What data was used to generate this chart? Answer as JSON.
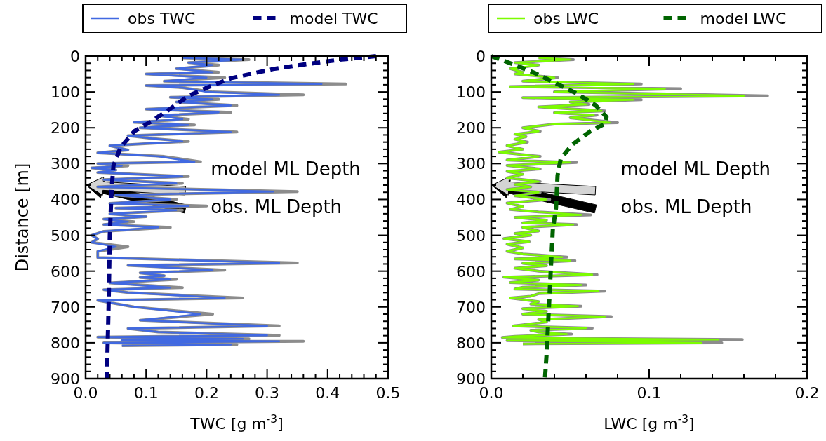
{
  "chart_data": [
    {
      "type": "line",
      "xlabel": "TWC [g m$^{-3}$]",
      "ylabel": "Distance [m]",
      "legend": "top",
      "xlim": [
        0,
        0.5
      ],
      "ylim": [
        900,
        0
      ],
      "xticks": [
        {
          "value": 0,
          "label": "0.0"
        },
        {
          "value": 0.02,
          "label": null
        },
        {
          "value": 0.04,
          "label": null
        },
        {
          "value": 0.06,
          "label": null
        },
        {
          "value": 0.08,
          "label": null
        },
        {
          "value": 0.1,
          "label": "0.1"
        },
        {
          "value": 0.12,
          "label": null
        },
        {
          "value": 0.14,
          "label": null
        },
        {
          "value": 0.16,
          "label": null
        },
        {
          "value": 0.18,
          "label": null
        },
        {
          "value": 0.2,
          "label": "0.2"
        },
        {
          "value": 0.22,
          "label": null
        },
        {
          "value": 0.24,
          "label": null
        },
        {
          "value": 0.26,
          "label": null
        },
        {
          "value": 0.28,
          "label": null
        },
        {
          "value": 0.3,
          "label": "0.3"
        },
        {
          "value": 0.32,
          "label": null
        },
        {
          "value": 0.34,
          "label": null
        },
        {
          "value": 0.36,
          "label": null
        },
        {
          "value": 0.38,
          "label": null
        },
        {
          "value": 0.4,
          "label": "0.4"
        },
        {
          "value": 0.42,
          "label": null
        },
        {
          "value": 0.44,
          "label": null
        },
        {
          "value": 0.46,
          "label": null
        },
        {
          "value": 0.48,
          "label": null
        },
        {
          "value": 0.5,
          "label": "0.5"
        }
      ],
      "yticks": [
        0,
        {
          "value": 20,
          "label": null
        },
        {
          "value": 40,
          "label": null
        },
        {
          "value": 60,
          "label": null
        },
        {
          "value": 80,
          "label": null
        },
        100,
        {
          "value": 120,
          "label": null
        },
        {
          "value": 140,
          "label": null
        },
        {
          "value": 160,
          "label": null
        },
        {
          "value": 180,
          "label": null
        },
        200,
        {
          "value": 220,
          "label": null
        },
        {
          "value": 240,
          "label": null
        },
        {
          "value": 260,
          "label": null
        },
        {
          "value": 280,
          "label": null
        },
        300,
        {
          "value": 320,
          "label": null
        },
        {
          "value": 340,
          "label": null
        },
        {
          "value": 360,
          "label": null
        },
        {
          "value": 380,
          "label": null
        },
        400,
        {
          "value": 420,
          "label": null
        },
        {
          "value": 440,
          "label": null
        },
        {
          "value": 460,
          "label": null
        },
        {
          "value": 480,
          "label": null
        },
        500,
        {
          "value": 520,
          "label": null
        },
        {
          "value": 540,
          "label": null
        },
        {
          "value": 560,
          "label": null
        },
        {
          "value": 580,
          "label": null
        },
        600,
        {
          "value": 620,
          "label": null
        },
        {
          "value": 640,
          "label": null
        },
        {
          "value": 660,
          "label": null
        },
        {
          "value": 680,
          "label": null
        },
        700,
        {
          "value": 720,
          "label": null
        },
        {
          "value": 740,
          "label": null
        },
        {
          "value": 760,
          "label": null
        },
        {
          "value": 780,
          "label": null
        },
        800,
        {
          "value": 820,
          "label": null
        },
        {
          "value": 840,
          "label": null
        },
        {
          "value": 860,
          "label": null
        },
        {
          "value": 880,
          "label": null
        },
        900
      ],
      "series": [
        {
          "color": "#8c8c8c",
          "line_style": "solid",
          "values": [
            5,
            10,
            18,
            25,
            35,
            45,
            50,
            60,
            70,
            78,
            82,
            88,
            100,
            108,
            115,
            121,
            128,
            138,
            148,
            157,
            166,
            176,
            185,
            192,
            200,
            212,
            222,
            230,
            238,
            250,
            262,
            270,
            280,
            295,
            300,
            306,
            312,
            318,
            325,
            336,
            345,
            355,
            365,
            378,
            388,
            400,
            411,
            418,
            424,
            430,
            440,
            448,
            455,
            462,
            470,
            478,
            489,
            500,
            510,
            520,
            532,
            545,
            562,
            577,
            584,
            597,
            605,
            613,
            618,
            623,
            633,
            646,
            652,
            660,
            675,
            682,
            700,
            720,
            737,
            753,
            760,
            770,
            779,
            784,
            789,
            793,
            796,
            800,
            805,
            808
          ],
          "x": [
            0.16,
            0.27,
            0.17,
            0.22,
            0.15,
            0.22,
            0.1,
            0.23,
            0.13,
            0.43,
            0.1,
            0.16,
            0.21,
            0.36,
            0.14,
            0.22,
            0.15,
            0.25,
            0.1,
            0.24,
            0.12,
            0.17,
            0.08,
            0.18,
            0.09,
            0.25,
            0.07,
            0.11,
            0.17,
            0.04,
            0.07,
            0.02,
            0.13,
            0.19,
            0.02,
            0.07,
            0.01,
            0.05,
            0.02,
            0.17,
            0.03,
            0.16,
            0.02,
            0.35,
            0.05,
            0.15,
            0.04,
            0.2,
            0.05,
            0.16,
            0.04,
            0.1,
            0.03,
            0.08,
            0.03,
            0.14,
            0.03,
            0.01,
            0.02,
            0.01,
            0.07,
            0.02,
            0.02,
            0.35,
            0.07,
            0.23,
            0.09,
            0.13,
            0.09,
            0.15,
            0.04,
            0.16,
            0.03,
            0.07,
            0.26,
            0.02,
            0.08,
            0.21,
            0.09,
            0.32,
            0.07,
            0.12,
            0.32,
            0.02,
            0.27,
            0.06,
            0.36,
            0.03,
            0.25,
            0.06
          ]
        },
        {
          "name": "obs TWC",
          "color": "#4169e1",
          "line_style": "solid",
          "values": [
            5,
            10,
            18,
            25,
            35,
            45,
            50,
            60,
            70,
            78,
            82,
            88,
            100,
            108,
            115,
            121,
            128,
            138,
            148,
            157,
            166,
            176,
            185,
            192,
            200,
            212,
            222,
            230,
            238,
            250,
            262,
            270,
            280,
            295,
            300,
            306,
            312,
            318,
            325,
            336,
            345,
            355,
            365,
            378,
            388,
            400,
            411,
            418,
            424,
            430,
            440,
            448,
            455,
            462,
            470,
            478,
            489,
            500,
            510,
            520,
            532,
            545,
            562,
            577,
            584,
            597,
            605,
            613,
            618,
            623,
            633,
            646,
            652,
            660,
            675,
            682,
            700,
            720,
            737,
            753,
            760,
            770,
            779,
            784,
            789,
            793,
            796,
            800,
            805,
            808
          ],
          "x": [
            0.16,
            0.26,
            0.17,
            0.21,
            0.15,
            0.21,
            0.1,
            0.2,
            0.13,
            0.39,
            0.1,
            0.16,
            0.2,
            0.32,
            0.14,
            0.21,
            0.15,
            0.24,
            0.1,
            0.22,
            0.12,
            0.16,
            0.08,
            0.17,
            0.09,
            0.24,
            0.07,
            0.11,
            0.16,
            0.04,
            0.07,
            0.02,
            0.12,
            0.18,
            0.02,
            0.06,
            0.01,
            0.05,
            0.02,
            0.16,
            0.03,
            0.15,
            0.02,
            0.31,
            0.05,
            0.14,
            0.04,
            0.17,
            0.05,
            0.15,
            0.04,
            0.1,
            0.03,
            0.07,
            0.03,
            0.12,
            0.03,
            0.01,
            0.02,
            0.01,
            0.05,
            0.02,
            0.02,
            0.32,
            0.07,
            0.21,
            0.09,
            0.13,
            0.09,
            0.14,
            0.04,
            0.14,
            0.03,
            0.07,
            0.23,
            0.02,
            0.08,
            0.19,
            0.09,
            0.3,
            0.07,
            0.12,
            0.3,
            0.02,
            0.26,
            0.06,
            0.32,
            0.03,
            0.24,
            0.06
          ]
        },
        {
          "name": "model TWC",
          "color": "#000080",
          "line_style": "dashed",
          "values": [
            0,
            5,
            10,
            26,
            36,
            62,
            85,
            111,
            147,
            183,
            209,
            254,
            306,
            372,
            500,
            700,
            900
          ],
          "x": [
            0.48,
            0.45,
            0.42,
            0.35,
            0.31,
            0.24,
            0.205,
            0.17,
            0.14,
            0.108,
            0.081,
            0.058,
            0.046,
            0.043,
            0.04,
            0.038,
            0.035
          ]
        }
      ],
      "annotations": [
        "model ML Depth",
        "obs. ML Depth"
      ]
    },
    {
      "type": "line",
      "xlabel": "LWC [g m$^{-3}$]",
      "legend": "top",
      "xlim": [
        0,
        0.2
      ],
      "ylim": [
        900,
        0
      ],
      "xticks": [
        {
          "value": 0,
          "label": "0.0"
        },
        {
          "value": 0.02,
          "label": null
        },
        {
          "value": 0.04,
          "label": null
        },
        {
          "value": 0.06,
          "label": null
        },
        {
          "value": 0.08,
          "label": null
        },
        {
          "value": 0.1,
          "label": "0.1"
        },
        {
          "value": 0.12,
          "label": null
        },
        {
          "value": 0.14,
          "label": null
        },
        {
          "value": 0.16,
          "label": null
        },
        {
          "value": 0.18,
          "label": null
        },
        {
          "value": 0.2,
          "label": "0.2"
        }
      ],
      "yticks": [
        0,
        {
          "value": 20,
          "label": null
        },
        {
          "value": 40,
          "label": null
        },
        {
          "value": 60,
          "label": null
        },
        {
          "value": 80,
          "label": null
        },
        100,
        {
          "value": 120,
          "label": null
        },
        {
          "value": 140,
          "label": null
        },
        {
          "value": 160,
          "label": null
        },
        {
          "value": 180,
          "label": null
        },
        200,
        {
          "value": 220,
          "label": null
        },
        {
          "value": 240,
          "label": null
        },
        {
          "value": 260,
          "label": null
        },
        {
          "value": 280,
          "label": null
        },
        300,
        {
          "value": 320,
          "label": null
        },
        {
          "value": 340,
          "label": null
        },
        {
          "value": 360,
          "label": null
        },
        {
          "value": 380,
          "label": null
        },
        400,
        {
          "value": 420,
          "label": null
        },
        {
          "value": 440,
          "label": null
        },
        {
          "value": 460,
          "label": null
        },
        {
          "value": 480,
          "label": null
        },
        500,
        {
          "value": 520,
          "label": null
        },
        {
          "value": 540,
          "label": null
        },
        {
          "value": 560,
          "label": null
        },
        {
          "value": 580,
          "label": null
        },
        600,
        {
          "value": 620,
          "label": null
        },
        {
          "value": 640,
          "label": null
        },
        {
          "value": 660,
          "label": null
        },
        {
          "value": 680,
          "label": null
        },
        700,
        {
          "value": 720,
          "label": null
        },
        {
          "value": 740,
          "label": null
        },
        {
          "value": 760,
          "label": null
        },
        {
          "value": 780,
          "label": null
        },
        800,
        {
          "value": 820,
          "label": null
        },
        {
          "value": 840,
          "label": null
        },
        {
          "value": 860,
          "label": null
        },
        {
          "value": 880,
          "label": null
        },
        900
      ],
      "series": [
        {
          "color": "#8c8c8c",
          "line_style": "solid",
          "values": [
            5,
            10,
            18,
            25,
            35,
            45,
            50,
            60,
            70,
            78,
            85,
            91,
            100,
            111,
            116,
            122,
            128,
            135,
            142,
            153,
            158,
            165,
            172,
            186,
            190,
            200,
            210,
            218,
            225,
            232,
            240,
            250,
            260,
            268,
            280,
            290,
            297,
            305,
            315,
            322,
            330,
            340,
            350,
            358,
            365,
            372,
            380,
            390,
            400,
            410,
            420,
            428,
            435,
            443,
            450,
            458,
            465,
            470,
            478,
            488,
            495,
            500,
            509,
            518,
            525,
            535,
            545,
            552,
            561,
            566,
            571,
            578,
            585,
            592,
            600,
            610,
            617,
            625,
            632,
            639,
            645,
            650,
            656,
            663,
            670,
            675,
            685,
            692,
            698,
            705,
            712,
            720,
            727,
            735,
            742,
            753,
            759,
            765,
            770,
            776,
            782,
            785,
            788,
            791,
            794,
            796,
            800,
            803
          ],
          "x": [
            0.03,
            0.052,
            0.015,
            0.03,
            0.012,
            0.02,
            0.015,
            0.042,
            0.02,
            0.095,
            0.012,
            0.12,
            0.04,
            0.175,
            0.02,
            0.095,
            0.05,
            0.062,
            0.03,
            0.072,
            0.04,
            0.067,
            0.05,
            0.08,
            0.04,
            0.02,
            0.031,
            0.015,
            0.022,
            0.015,
            0.023,
            0.01,
            0.02,
            0.005,
            0.031,
            0.01,
            0.054,
            0.01,
            0.031,
            0.01,
            0.02,
            0.01,
            0.031,
            0.015,
            0.025,
            0.01,
            0.031,
            0.015,
            0.037,
            0.01,
            0.02,
            0.012,
            0.03,
            0.063,
            0.015,
            0.035,
            0.02,
            0.054,
            0.02,
            0.03,
            0.015,
            0.025,
            0.008,
            0.024,
            0.01,
            0.02,
            0.01,
            0.02,
            0.048,
            0.015,
            0.053,
            0.02,
            0.035,
            0.015,
            0.03,
            0.067,
            0.008,
            0.03,
            0.012,
            0.06,
            0.02,
            0.015,
            0.072,
            0.03,
            0.025,
            0.012,
            0.03,
            0.025,
            0.057,
            0.02,
            0.035,
            0.02,
            0.076,
            0.03,
            0.035,
            0.014,
            0.064,
            0.025,
            0.03,
            0.051,
            0.015,
            0.007,
            0.06,
            0.159,
            0.01,
            0.05,
            0.146,
            0.02
          ]
        },
        {
          "name": "obs LWC",
          "color": "#7cfc00",
          "line_style": "solid",
          "values": [
            5,
            10,
            18,
            25,
            35,
            45,
            50,
            60,
            70,
            78,
            85,
            91,
            100,
            111,
            116,
            122,
            128,
            135,
            142,
            153,
            158,
            165,
            172,
            186,
            190,
            200,
            210,
            218,
            225,
            232,
            240,
            250,
            260,
            268,
            280,
            290,
            297,
            305,
            315,
            322,
            330,
            340,
            350,
            358,
            365,
            372,
            380,
            390,
            400,
            410,
            420,
            428,
            435,
            443,
            450,
            458,
            465,
            470,
            478,
            488,
            495,
            500,
            509,
            518,
            525,
            535,
            545,
            552,
            561,
            566,
            571,
            578,
            585,
            592,
            600,
            610,
            617,
            625,
            632,
            639,
            645,
            650,
            656,
            663,
            670,
            675,
            685,
            692,
            698,
            705,
            712,
            720,
            727,
            735,
            742,
            753,
            759,
            765,
            770,
            776,
            782,
            785,
            788,
            791,
            794,
            796,
            800,
            803
          ],
          "x": [
            0.03,
            0.05,
            0.015,
            0.03,
            0.012,
            0.02,
            0.015,
            0.04,
            0.02,
            0.09,
            0.012,
            0.11,
            0.04,
            0.16,
            0.02,
            0.09,
            0.05,
            0.06,
            0.03,
            0.07,
            0.04,
            0.065,
            0.05,
            0.075,
            0.04,
            0.02,
            0.03,
            0.015,
            0.022,
            0.015,
            0.022,
            0.01,
            0.02,
            0.005,
            0.03,
            0.01,
            0.05,
            0.01,
            0.03,
            0.01,
            0.02,
            0.01,
            0.03,
            0.015,
            0.025,
            0.01,
            0.03,
            0.015,
            0.035,
            0.01,
            0.02,
            0.012,
            0.03,
            0.057,
            0.015,
            0.035,
            0.02,
            0.052,
            0.02,
            0.03,
            0.015,
            0.025,
            0.008,
            0.024,
            0.01,
            0.02,
            0.01,
            0.02,
            0.045,
            0.015,
            0.05,
            0.02,
            0.035,
            0.015,
            0.03,
            0.064,
            0.008,
            0.03,
            0.012,
            0.057,
            0.02,
            0.015,
            0.068,
            0.03,
            0.025,
            0.012,
            0.03,
            0.025,
            0.055,
            0.02,
            0.035,
            0.02,
            0.072,
            0.03,
            0.035,
            0.014,
            0.06,
            0.025,
            0.03,
            0.048,
            0.015,
            0.007,
            0.06,
            0.144,
            0.01,
            0.05,
            0.133,
            0.02
          ]
        },
        {
          "name": "model LWC",
          "color": "#006400",
          "line_style": "dashed",
          "values": [
            0,
            23,
            46,
            78,
            104,
            137,
            170,
            189,
            209,
            248,
            287,
            333,
            424,
            483,
            659,
            835,
            900
          ],
          "x": [
            0.0,
            0.014,
            0.027,
            0.042,
            0.054,
            0.066,
            0.073,
            0.072,
            0.063,
            0.051,
            0.044,
            0.042,
            0.041,
            0.039,
            0.037,
            0.035,
            0.034
          ]
        }
      ],
      "annotations": [
        "model ML Depth",
        "obs. ML Depth"
      ]
    }
  ]
}
